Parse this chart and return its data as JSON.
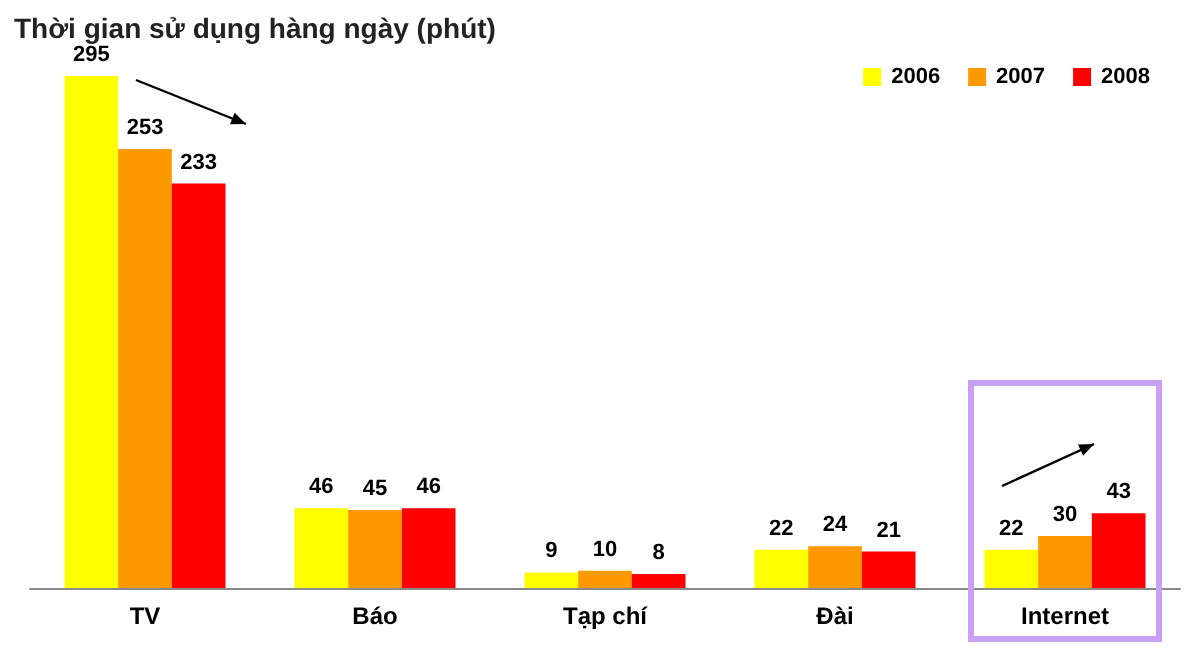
{
  "chart_data": {
    "type": "bar",
    "title": "Thời gian sử dụng hàng ngày (phút)",
    "categories": [
      "TV",
      "Báo",
      "Tạp chí",
      "Đài",
      "Internet"
    ],
    "series": [
      {
        "name": "2006",
        "color": "#ffff00",
        "values": [
          295,
          46,
          9,
          22,
          22
        ]
      },
      {
        "name": "2007",
        "color": "#ff9900",
        "values": [
          253,
          45,
          10,
          24,
          30
        ]
      },
      {
        "name": "2008",
        "color": "#ff0000",
        "values": [
          233,
          46,
          8,
          21,
          43
        ]
      }
    ],
    "data_labels": true,
    "legend": "top right",
    "tick_labels": "x"
  }
}
